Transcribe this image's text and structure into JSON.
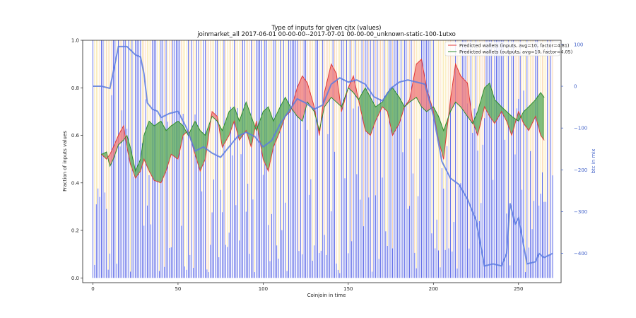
{
  "chart_data": {
    "type": "line",
    "title": "Type of inputs for given cjtx (values)",
    "subtitle": "joinmarket_all 2017-06-01 00-00-00--2017-07-01 00-00-00_unknown-static-100-1utxo",
    "xlabel": "Coinjoin in time",
    "ylabel": "Fraction of inputs values",
    "y2label": "btc in mix",
    "xlim": [
      -6,
      275
    ],
    "ylim": [
      -0.02,
      1.0
    ],
    "y2lim": [
      -470,
      110
    ],
    "x_ticks": [
      0,
      50,
      100,
      150,
      200,
      250
    ],
    "y_ticks": [
      0.0,
      0.2,
      0.4,
      0.6,
      0.8,
      1.0
    ],
    "y2_ticks": [
      100,
      0,
      -100,
      -200,
      -300,
      -400
    ],
    "x_tick_labels": [
      "0",
      "50",
      "100",
      "150",
      "200",
      "250"
    ],
    "y_tick_labels": [
      "0.0",
      "0.2",
      "0.4",
      "0.6",
      "0.8",
      "1.0"
    ],
    "y2_tick_labels": [
      "100",
      "0",
      "−100",
      "−200",
      "−300",
      "−400"
    ],
    "legend_position": "top-right",
    "colors": {
      "inputs": "#e03a3a",
      "outputs": "#2e8b2e",
      "inputs_fill": "#f08080",
      "outputs_fill": "#5fad5f",
      "btc": "#5b7be0",
      "bars_blue": "#3040e0",
      "bars_yellow": "#f5d76e",
      "bars_orange": "#f5b070"
    },
    "series": [
      {
        "name": "Predicted wallets (inputs, avg=10, factor=4.81)",
        "axis": "left",
        "x": [
          5,
          8,
          10,
          12,
          15,
          18,
          20,
          22,
          25,
          28,
          30,
          33,
          36,
          40,
          43,
          46,
          50,
          53,
          56,
          60,
          63,
          66,
          70,
          73,
          76,
          80,
          83,
          86,
          90,
          93,
          96,
          100,
          103,
          106,
          110,
          113,
          116,
          120,
          123,
          126,
          130,
          133,
          136,
          140,
          143,
          146,
          150,
          153,
          156,
          160,
          163,
          166,
          170,
          173,
          176,
          180,
          183,
          186,
          190,
          193,
          196,
          200,
          203,
          206,
          210,
          213,
          216,
          220,
          223,
          226,
          230,
          233,
          236,
          240,
          243,
          246,
          250,
          253,
          256,
          260,
          263,
          265
        ],
        "values": [
          0.52,
          0.5,
          0.52,
          0.55,
          0.6,
          0.64,
          0.55,
          0.48,
          0.42,
          0.45,
          0.5,
          0.45,
          0.41,
          0.4,
          0.45,
          0.52,
          0.5,
          0.6,
          0.62,
          0.52,
          0.45,
          0.5,
          0.7,
          0.68,
          0.55,
          0.6,
          0.66,
          0.58,
          0.62,
          0.55,
          0.66,
          0.5,
          0.45,
          0.55,
          0.62,
          0.68,
          0.7,
          0.8,
          0.85,
          0.82,
          0.72,
          0.6,
          0.78,
          0.9,
          0.86,
          0.7,
          0.8,
          0.85,
          0.75,
          0.62,
          0.6,
          0.66,
          0.72,
          0.7,
          0.6,
          0.65,
          0.72,
          0.75,
          0.9,
          0.92,
          0.8,
          0.7,
          0.58,
          0.5,
          0.75,
          0.9,
          0.85,
          0.82,
          0.66,
          0.6,
          0.72,
          0.68,
          0.65,
          0.7,
          0.66,
          0.6,
          0.7,
          0.65,
          0.62,
          0.68,
          0.6,
          0.58
        ]
      },
      {
        "name": "Predicted wallets (outputs, avg=10, factor=4.05)",
        "axis": "left",
        "x": [
          5,
          8,
          10,
          12,
          15,
          18,
          20,
          22,
          25,
          28,
          30,
          33,
          36,
          40,
          43,
          46,
          50,
          53,
          56,
          60,
          63,
          66,
          70,
          73,
          76,
          80,
          83,
          86,
          90,
          93,
          96,
          100,
          103,
          106,
          110,
          113,
          116,
          120,
          123,
          126,
          130,
          133,
          136,
          140,
          143,
          146,
          150,
          153,
          156,
          160,
          163,
          166,
          170,
          173,
          176,
          180,
          183,
          186,
          190,
          193,
          196,
          200,
          203,
          206,
          210,
          213,
          216,
          220,
          223,
          226,
          230,
          233,
          236,
          240,
          243,
          246,
          250,
          253,
          256,
          260,
          263,
          265
        ],
        "values": [
          0.52,
          0.53,
          0.47,
          0.5,
          0.56,
          0.58,
          0.6,
          0.55,
          0.45,
          0.5,
          0.6,
          0.66,
          0.64,
          0.66,
          0.62,
          0.64,
          0.66,
          0.64,
          0.6,
          0.66,
          0.62,
          0.6,
          0.68,
          0.66,
          0.62,
          0.7,
          0.72,
          0.66,
          0.74,
          0.68,
          0.62,
          0.7,
          0.72,
          0.66,
          0.72,
          0.76,
          0.72,
          0.68,
          0.66,
          0.74,
          0.7,
          0.62,
          0.72,
          0.76,
          0.74,
          0.72,
          0.8,
          0.78,
          0.75,
          0.8,
          0.76,
          0.72,
          0.74,
          0.78,
          0.8,
          0.76,
          0.72,
          0.74,
          0.76,
          0.72,
          0.7,
          0.72,
          0.68,
          0.62,
          0.7,
          0.74,
          0.72,
          0.68,
          0.65,
          0.7,
          0.8,
          0.82,
          0.75,
          0.72,
          0.7,
          0.68,
          0.66,
          0.7,
          0.72,
          0.75,
          0.78,
          0.76
        ]
      },
      {
        "axis": "right",
        "x": [
          0,
          5,
          10,
          15,
          20,
          25,
          28,
          30,
          32,
          35,
          38,
          40,
          45,
          50,
          55,
          60,
          65,
          70,
          75,
          80,
          85,
          90,
          95,
          100,
          105,
          110,
          115,
          120,
          125,
          130,
          135,
          140,
          145,
          150,
          155,
          160,
          165,
          170,
          175,
          180,
          185,
          190,
          195,
          200,
          205,
          210,
          215,
          220,
          225,
          230,
          235,
          240,
          243,
          245,
          248,
          250,
          255,
          260,
          262,
          265,
          270
        ],
        "values": [
          0,
          0,
          -5,
          95,
          95,
          75,
          70,
          30,
          -40,
          -55,
          -60,
          -75,
          -65,
          -60,
          -100,
          -155,
          -145,
          -160,
          -170,
          -145,
          -120,
          -110,
          -120,
          -145,
          -130,
          -90,
          -60,
          -30,
          -40,
          -55,
          -45,
          5,
          20,
          10,
          15,
          5,
          -25,
          -35,
          -5,
          10,
          15,
          10,
          5,
          -70,
          -180,
          -220,
          -235,
          -270,
          -320,
          -430,
          -425,
          -430,
          -400,
          -280,
          -330,
          -315,
          -425,
          -420,
          -400,
          -410,
          -400
        ]
      }
    ]
  }
}
